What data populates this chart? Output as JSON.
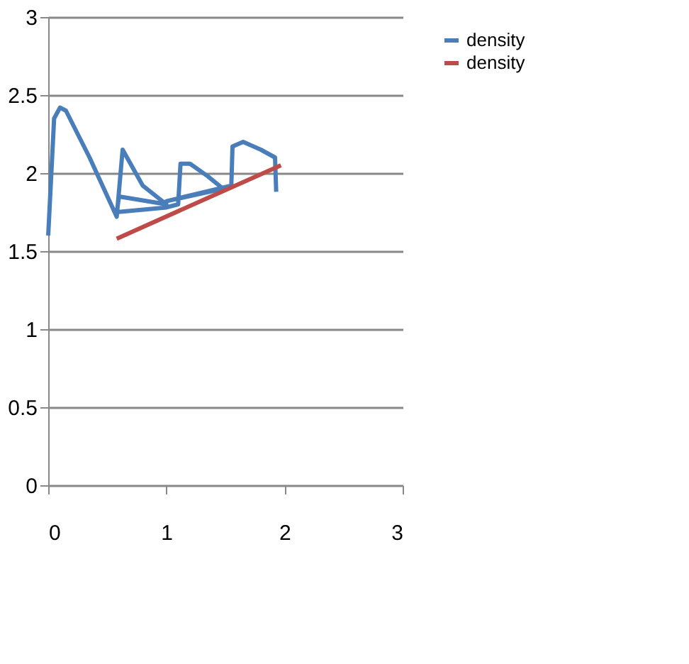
{
  "chart_data": {
    "type": "line",
    "xlim": [
      0,
      3
    ],
    "xticks": [
      0,
      1,
      2,
      3
    ],
    "ylim": [
      0,
      3
    ],
    "yticks": [
      0,
      0.5,
      1,
      1.5,
      2,
      2.5,
      3
    ],
    "grid": "y",
    "legend": "right",
    "marker": "none",
    "line_style": "solid",
    "series": [
      {
        "name": "density",
        "color": "#4a7ebb",
        "x": [
          0,
          0.05,
          0.1,
          0.15,
          0.35,
          0.58,
          0.63,
          0.8,
          1.0,
          0.6,
          0.58,
          1.0,
          1.1,
          1.12,
          1.2,
          1.35,
          1.48,
          1.0,
          1.55,
          1.56,
          1.65,
          1.8,
          1.92,
          1.93
        ],
        "values": [
          1.6,
          2.35,
          2.42,
          2.4,
          2.1,
          1.72,
          2.15,
          1.92,
          1.8,
          1.85,
          1.75,
          1.78,
          1.8,
          2.06,
          2.06,
          1.98,
          1.9,
          1.82,
          1.92,
          2.17,
          2.2,
          2.15,
          2.1,
          1.88
        ]
      },
      {
        "name": "density",
        "color": "#be4b48",
        "x": [
          0.58,
          1.97
        ],
        "values": [
          1.58,
          2.05
        ]
      }
    ]
  }
}
